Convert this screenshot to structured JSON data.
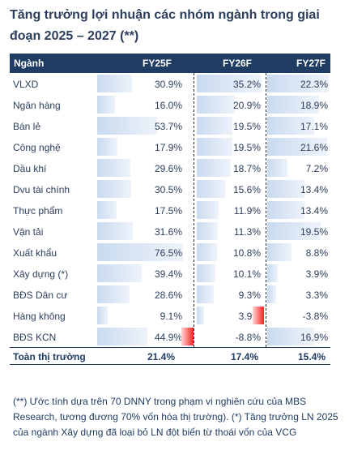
{
  "title": "Tăng trưởng lợi nhuận các nhóm ngành trong giai đoạn 2025 – 2027 (**)",
  "header": {
    "sector": "Ngành",
    "fy25": "FY25F",
    "fy26": "FY26F",
    "fy27": "FY27F"
  },
  "total": {
    "label": "Toàn thị trường",
    "fy25": "21.4%",
    "fy26": "17.4%",
    "fy27": "15.4%"
  },
  "note": "(**) Ước tính dựa trên 70 DNNY trong phạm vi nghiên cứu của MBS Research, tương đương 70% vốn hóa thị trường). (*) Tăng trưởng LN 2025 của ngành Xây dựng đã loại bỏ LN đột biến từ thoái vốn của VCG",
  "colors": {
    "header_bg": "#1f3c63",
    "positive_bar": "#c9daf0",
    "negative_bar": "#ff2020",
    "text": "#2c3e5c"
  },
  "chart_data": {
    "type": "table",
    "columns": [
      "FY25F",
      "FY26F",
      "FY27F"
    ],
    "unit": "%",
    "rows": [
      {
        "sector": "VLXD",
        "values": [
          30.9,
          35.2,
          22.3
        ],
        "labels": [
          "30.9%",
          "35.2%",
          "22.3%"
        ]
      },
      {
        "sector": "Ngân hàng",
        "values": [
          16.0,
          20.9,
          18.9
        ],
        "labels": [
          "16.0%",
          "20.9%",
          "18.9%"
        ]
      },
      {
        "sector": "Bán lẻ",
        "values": [
          53.7,
          19.5,
          17.1
        ],
        "labels": [
          "53.7%",
          "19.5%",
          "17.1%"
        ]
      },
      {
        "sector": "Công nghệ",
        "values": [
          17.9,
          19.5,
          21.6
        ],
        "labels": [
          "17.9%",
          "19.5%",
          "21.6%"
        ]
      },
      {
        "sector": "Dầu khí",
        "values": [
          29.6,
          18.7,
          7.2
        ],
        "labels": [
          "29.6%",
          "18.7%",
          "7.2%"
        ]
      },
      {
        "sector": "Dvu tài chính",
        "values": [
          30.5,
          15.6,
          13.4
        ],
        "labels": [
          "30.5%",
          "15.6%",
          "13.4%"
        ]
      },
      {
        "sector": "Thực phẩm",
        "values": [
          17.5,
          11.9,
          13.4
        ],
        "labels": [
          "17.5%",
          "11.9%",
          "13.4%"
        ]
      },
      {
        "sector": "Vận tải",
        "values": [
          31.6,
          11.3,
          19.5
        ],
        "labels": [
          "31.6%",
          "11.3%",
          "19.5%"
        ]
      },
      {
        "sector": "Xuất khẩu",
        "values": [
          76.5,
          10.8,
          8.8
        ],
        "labels": [
          "76.5%",
          "10.8%",
          "8.8%"
        ]
      },
      {
        "sector": "Xây dựng (*)",
        "values": [
          39.4,
          10.1,
          3.9
        ],
        "labels": [
          "39.4%",
          "10.1%",
          "3.9%"
        ]
      },
      {
        "sector": "BĐS Dân cư",
        "values": [
          28.6,
          9.3,
          3.3
        ],
        "labels": [
          "28.6%",
          "9.3%",
          "3.3%"
        ]
      },
      {
        "sector": "Hàng không",
        "values": [
          9.1,
          3.9,
          -3.8
        ],
        "labels": [
          "9.1%",
          "3.9%",
          "-3.8%"
        ]
      },
      {
        "sector": "BĐS KCN",
        "values": [
          44.9,
          -8.8,
          16.9
        ],
        "labels": [
          "44.9%",
          "-8.8%",
          "16.9%"
        ]
      }
    ]
  }
}
